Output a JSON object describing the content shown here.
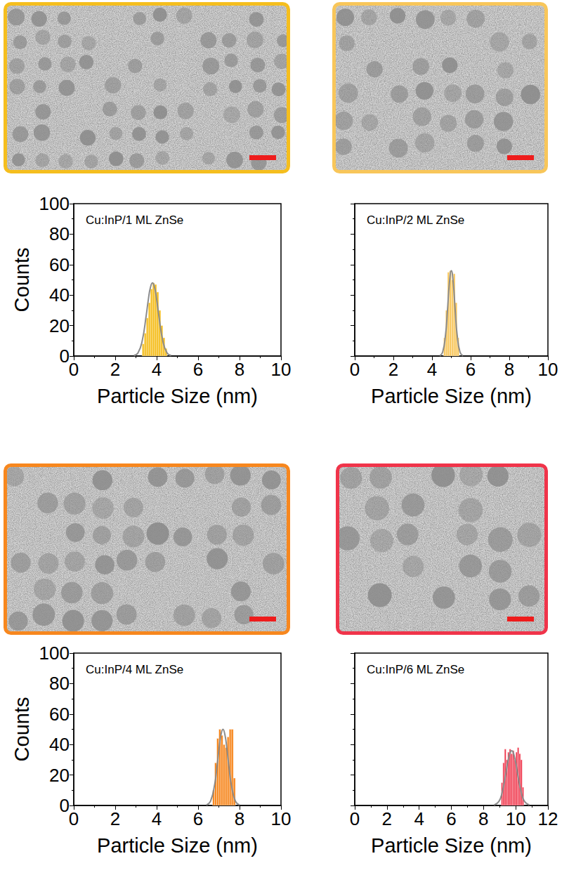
{
  "chart_data": [
    {
      "type": "histogram",
      "title": "Cu:InP/1 ML ZnSe",
      "x_label": "Particle Size (nm)",
      "y_label": "Counts",
      "bins": [
        3.3,
        3.4,
        3.5,
        3.6,
        3.7,
        3.8,
        3.9,
        4.0,
        4.1,
        4.2,
        4.3,
        4.4,
        4.5
      ],
      "counts": [
        8,
        15,
        25,
        35,
        44,
        48,
        47,
        42,
        30,
        20,
        12,
        5
      ],
      "color": "#f5be1e",
      "series": [
        {
          "type": "line",
          "color": "#8c8c8c",
          "x": [
            2.9,
            3.1,
            3.3,
            3.5,
            3.6,
            3.7,
            3.8,
            3.9,
            4.0,
            4.1,
            4.3,
            4.5,
            4.7
          ],
          "values": [
            0.3,
            2.1,
            9.8,
            27,
            37.2,
            45,
            48,
            45,
            37.2,
            27,
            9.8,
            2.1,
            0.3
          ]
        }
      ],
      "xlim": [
        0,
        10
      ],
      "xticks": [
        0,
        2,
        4,
        6,
        8,
        10
      ],
      "ylim": [
        0,
        100
      ],
      "yticks": [
        0,
        20,
        40,
        60,
        80,
        100
      ],
      "tick_labels": true
    },
    {
      "type": "histogram",
      "title": "Cu:InP/2 ML ZnSe",
      "x_label": "Particle Size (nm)",
      "bins": [
        4.6,
        4.7,
        4.8,
        4.9,
        5.0,
        5.1,
        5.2,
        5.3,
        5.4
      ],
      "counts": [
        12,
        30,
        55,
        56,
        50,
        54,
        35,
        12
      ],
      "color": "#f8c65a",
      "series": [
        {
          "type": "line",
          "color": "#8c8c8c",
          "x": [
            4.4,
            4.55,
            4.7,
            4.8,
            4.9,
            5.0,
            5.1,
            5.2,
            5.3,
            5.45,
            5.6
          ],
          "values": [
            0.2,
            2.5,
            14,
            30,
            48,
            56,
            48,
            30,
            14,
            2.5,
            0.2
          ]
        }
      ],
      "xlim": [
        0,
        10
      ],
      "xticks": [
        0,
        2,
        4,
        6,
        8,
        10
      ],
      "ylim": [
        0,
        100
      ],
      "yticks": [
        0,
        20,
        40,
        60,
        80,
        100
      ],
      "tick_labels": "x"
    },
    {
      "type": "histogram",
      "title": "Cu:InP/4 ML ZnSe",
      "x_label": "Particle Size (nm)",
      "y_label": "Counts",
      "bins": [
        6.7,
        6.8,
        6.9,
        7.0,
        7.1,
        7.2,
        7.3,
        7.4,
        7.5,
        7.6,
        7.7,
        7.8
      ],
      "counts": [
        10,
        28,
        44,
        50,
        46,
        40,
        38,
        45,
        50,
        50,
        18
      ],
      "color": "#f7871e",
      "series": [
        {
          "type": "line",
          "color": "#8c8c8c",
          "x": [
            6.4,
            6.6,
            6.8,
            6.9,
            7.0,
            7.1,
            7.2,
            7.3,
            7.4,
            7.5,
            7.6,
            7.8,
            8.0
          ],
          "values": [
            0.3,
            2.8,
            13.9,
            24,
            36,
            46,
            50,
            46,
            36,
            24,
            13.9,
            2.8,
            0.3
          ]
        }
      ],
      "xlim": [
        0,
        10
      ],
      "xticks": [
        0,
        2,
        4,
        6,
        8,
        10
      ],
      "ylim": [
        0,
        100
      ],
      "yticks": [
        0,
        20,
        40,
        60,
        80,
        100
      ],
      "tick_labels": true
    },
    {
      "type": "histogram",
      "title": "Cu:InP/6 ML ZnSe",
      "x_label": "Particle Size (nm)",
      "bins": [
        9.1,
        9.2,
        9.3,
        9.4,
        9.5,
        9.6,
        9.7,
        9.8,
        9.9,
        10.0,
        10.1,
        10.2,
        10.3,
        10.4,
        10.5
      ],
      "counts": [
        15,
        28,
        37,
        30,
        35,
        37,
        34,
        36,
        30,
        35,
        38,
        34,
        30,
        12
      ],
      "color": "#f0344a",
      "series": [
        {
          "type": "line",
          "color": "#8c8c8c",
          "x": [
            8.65,
            8.95,
            9.15,
            9.35,
            9.55,
            9.75,
            9.95,
            10.15,
            10.35,
            10.55,
            10.85
          ],
          "values": [
            0.3,
            2.6,
            8.3,
            18.7,
            30.6,
            36,
            30.6,
            18.7,
            8.3,
            2.6,
            0.3
          ]
        }
      ],
      "xlim": [
        0,
        12
      ],
      "xticks": [
        0,
        2,
        4,
        6,
        8,
        10,
        12
      ],
      "ylim": [
        0,
        100
      ],
      "yticks": [
        0,
        20,
        40,
        60,
        80,
        100
      ],
      "tick_labels": "x"
    }
  ]
}
